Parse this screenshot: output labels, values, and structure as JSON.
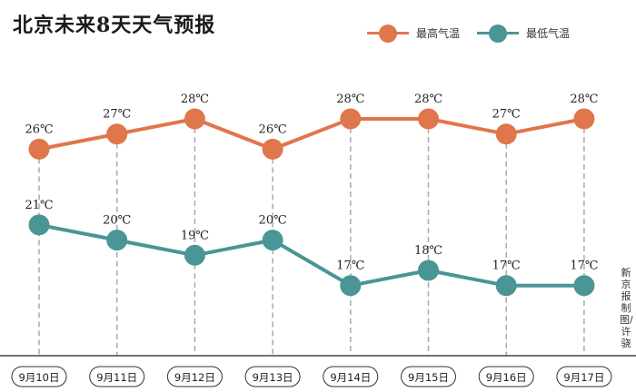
{
  "header": {
    "title": "北京未来8天天气预报"
  },
  "credit": "新京报制图/许骁",
  "colors": {
    "high": "#e0764b",
    "low": "#4a9596",
    "axis": "#222222",
    "grid": "#aaaaaa"
  },
  "legend": [
    {
      "name": "最高气温",
      "color": "#e0764b"
    },
    {
      "name": "最低气温",
      "color": "#4a9596"
    }
  ],
  "chart_data": {
    "type": "line",
    "title": "北京未来8天天气预报",
    "unit": "℃",
    "categories": [
      "9月10日",
      "9月11日",
      "9月12日",
      "9月13日",
      "9月14日",
      "9月15日",
      "9月16日",
      "9月17日"
    ],
    "series": [
      {
        "name": "最高气温",
        "values": [
          26,
          27,
          28,
          26,
          28,
          28,
          27,
          28
        ],
        "labels": [
          "26℃",
          "27℃",
          "28℃",
          "26℃",
          "28℃",
          "28℃",
          "27℃",
          "28℃"
        ]
      },
      {
        "name": "最低气温",
        "values": [
          21,
          20,
          19,
          20,
          17,
          18,
          17,
          17
        ],
        "labels": [
          "21℃",
          "20℃",
          "19℃",
          "20℃",
          "17℃",
          "18℃",
          "17℃",
          "17℃"
        ]
      }
    ],
    "xlabel": "",
    "ylabel": "",
    "grid": "dashed vertical guide per day",
    "legend_position": "top-right"
  }
}
